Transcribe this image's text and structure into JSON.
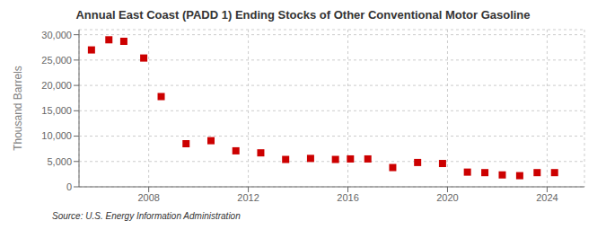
{
  "chart_data": {
    "type": "scatter",
    "title": "Annual East Coast (PADD 1) Ending Stocks of Other Conventional Motor Gasoline",
    "ylabel": "Thousand Barrels",
    "annotations": [
      "Source: U.S. Energy Information Administration"
    ],
    "x": [
      2005.7,
      2006.4,
      2007.0,
      2007.8,
      2008.5,
      2009.5,
      2010.5,
      2011.5,
      2012.5,
      2013.5,
      2014.5,
      2015.5,
      2016.1,
      2016.8,
      2017.8,
      2018.8,
      2019.8,
      2020.8,
      2021.5,
      2022.2,
      2022.9,
      2023.6,
      2024.3
    ],
    "values": [
      27000,
      29000,
      28700,
      25400,
      17800,
      8500,
      9100,
      7100,
      6700,
      5400,
      5600,
      5400,
      5500,
      5500,
      3800,
      4800,
      4600,
      2900,
      2800,
      2350,
      2200,
      2800,
      2800
    ],
    "color": "#cc0000",
    "marker": "square",
    "xlim": [
      2005.2,
      2025.5
    ],
    "xticks": [
      2008,
      2012,
      2016,
      2020,
      2024
    ],
    "ylim": [
      0,
      31000
    ],
    "yticks": [
      0,
      {
        "value": 5000,
        "label": "5,000"
      },
      {
        "value": 10000,
        "label": "10,000"
      },
      {
        "value": 15000,
        "label": "15,000"
      },
      {
        "value": 20000,
        "label": "20,000"
      },
      {
        "value": 25000,
        "label": "25,000"
      },
      {
        "value": 30000,
        "label": "30,000"
      }
    ],
    "grid": true
  }
}
